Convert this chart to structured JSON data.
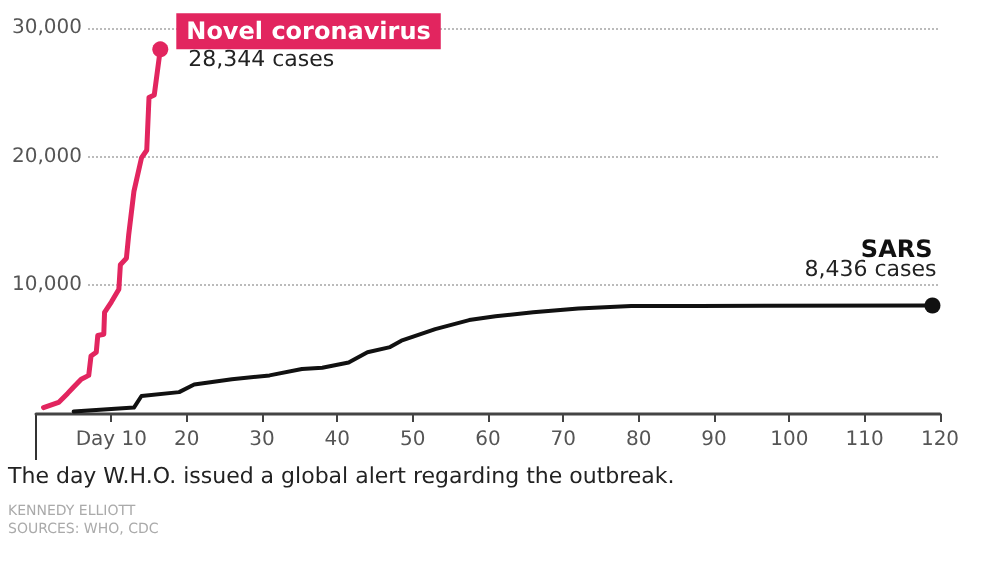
{
  "chart_data": {
    "type": "line",
    "x": [
      1,
      3,
      4.2,
      5,
      6,
      7,
      7.3,
      8,
      8.2,
      9,
      9.1,
      10,
      11,
      11.2,
      12,
      12.3,
      13,
      14,
      14.7,
      15,
      15.7,
      16.5
    ],
    "series": [
      {
        "name": "Novel coronavirus",
        "color": "#e2255f",
        "values": [
          500,
          900,
          1600,
          2100,
          2700,
          3000,
          4500,
          4800,
          6100,
          6200,
          7900,
          8700,
          9700,
          11600,
          12100,
          13900,
          17300,
          19900,
          20500,
          24600,
          24800,
          28344
        ]
      },
      {
        "name": "SARS",
        "color": "#111111",
        "x": [
          5,
          13,
          14,
          19,
          21,
          26,
          31,
          35.3,
          38,
          41.5,
          44,
          47,
          48.5,
          53,
          57.5,
          61,
          66,
          72,
          79,
          88,
          119
        ],
        "values": [
          200,
          500,
          1400,
          1700,
          2300,
          2700,
          3000,
          3500,
          3600,
          4000,
          4800,
          5200,
          5700,
          6600,
          7300,
          7600,
          7900,
          8200,
          8400,
          8400,
          8436
        ]
      }
    ],
    "xlim": [
      0,
      120
    ],
    "xticks": [
      {
        "value": 10,
        "label": "Day 10"
      },
      20,
      30,
      40,
      50,
      60,
      70,
      80,
      90,
      100,
      110,
      120
    ],
    "ylim": [
      0,
      30000
    ],
    "yticks": [
      {
        "value": 10000,
        "label": "10,000"
      },
      {
        "value": 20000,
        "label": "20,000"
      },
      {
        "value": 30000,
        "label": "30,000"
      }
    ],
    "grid": "y",
    "legend": false,
    "ref_lines": [
      {
        "axis": "x",
        "value": 0,
        "label": "The day W.H.O. issued a global alert regarding the outbreak.",
        "color": "#333333"
      }
    ],
    "annotations": [
      {
        "text": "28,344 cases",
        "x": 16.5,
        "y": 28344
      },
      {
        "text": "8,436 cases",
        "x": 119,
        "y": 8436
      },
      "KENNEDY ELLIOTT",
      "SOURCES: WHO, CDC"
    ]
  }
}
